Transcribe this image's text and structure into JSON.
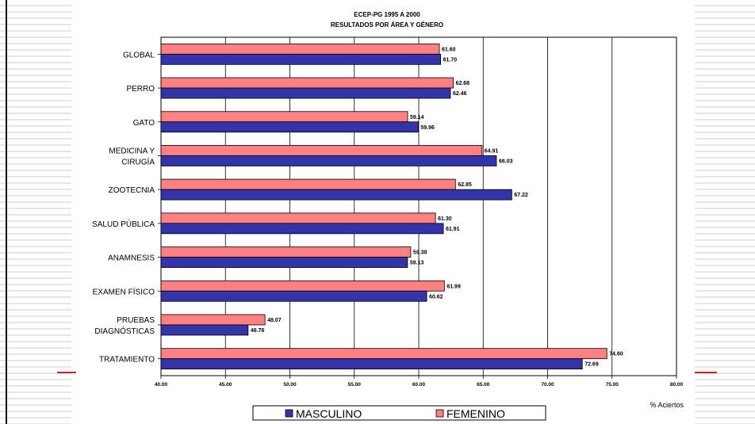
{
  "colors": {
    "masculino": "#3333aa",
    "femenino": "#ff8080",
    "accent_line": "#d02020",
    "stripes": "#e6e6e6"
  },
  "chart_data": {
    "type": "bar",
    "orientation": "horizontal",
    "title": "ECEP-PG 1995 A 2000",
    "subtitle": "RESULTADOS POR ÁREA Y GÉNERO",
    "xlabel": "% Aciertos",
    "xlim": [
      40,
      80
    ],
    "xticks": [
      "40.00",
      "45.00",
      "50.00",
      "55.00",
      "60.00",
      "65.00",
      "70.00",
      "75.00",
      "80.00"
    ],
    "grid": true,
    "legend_position": "bottom",
    "categories": [
      [
        "GLOBAL"
      ],
      [
        "PERRO"
      ],
      [
        "GATO"
      ],
      [
        "MEDICINA Y",
        "CIRUGÍA"
      ],
      [
        "ZOOTECNIA"
      ],
      [
        "SALUD PÚBLICA"
      ],
      [
        "ANAMNESIS"
      ],
      [
        "EXAMEN FÍSICO"
      ],
      [
        "PRUEBAS",
        "DIAGNÓSTICAS"
      ],
      [
        "TRATAMIENTO"
      ]
    ],
    "series": [
      {
        "name": "FEMENINO",
        "values": [
          61.6,
          62.68,
          59.14,
          64.91,
          62.85,
          61.3,
          59.38,
          61.99,
          48.07,
          74.6
        ],
        "labels": [
          "61.60",
          "62.68",
          "59.14",
          "64.91",
          "62.85",
          "61.30",
          "59.38",
          "61.99",
          "48.07",
          "74.60"
        ]
      },
      {
        "name": "MASCULINO",
        "values": [
          61.7,
          62.46,
          59.96,
          66.03,
          67.22,
          61.91,
          59.13,
          60.62,
          46.76,
          72.69
        ],
        "labels": [
          "61.70",
          "62.46",
          "59.96",
          "66.03",
          "67.22",
          "61.91",
          "59.13",
          "60.62",
          "46.76",
          "72.69"
        ]
      }
    ],
    "legend": [
      "MASCULINO",
      "FEMENINO"
    ]
  }
}
